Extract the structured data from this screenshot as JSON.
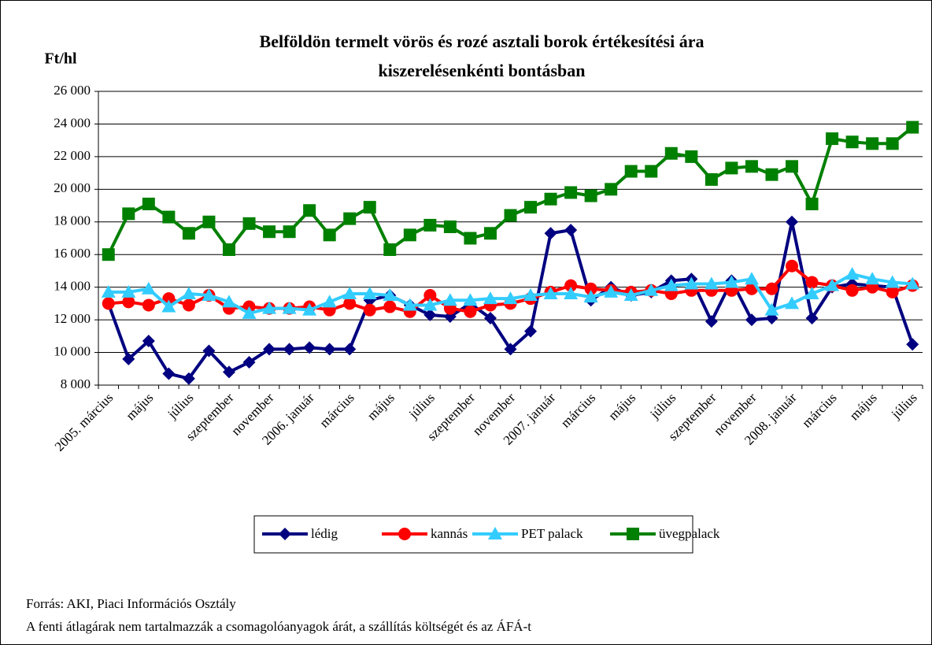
{
  "chart_data": {
    "type": "line",
    "title": [
      "Belföldön termelt vörös és rozé asztali borok értékesítési ára",
      "kiszerelésenkénti bontásban"
    ],
    "y_label": "Ft/hl",
    "categories": [
      "2005. március",
      null,
      "május",
      null,
      "július",
      null,
      "szeptember",
      null,
      "november",
      null,
      "2006. január",
      null,
      "március",
      null,
      "május",
      null,
      "július",
      null,
      "szeptember",
      null,
      "november",
      null,
      "2007. január",
      null,
      "március",
      null,
      "május",
      null,
      "július",
      null,
      "szeptember",
      null,
      "november",
      null,
      "2008. január",
      null,
      "március",
      null,
      "május",
      null,
      "július"
    ],
    "series": [
      {
        "name": "lédig",
        "color": "#000080",
        "marker": "diamond",
        "values": [
          13000,
          9600,
          10700,
          8700,
          8400,
          10100,
          8800,
          9400,
          10200,
          10200,
          10300,
          10200,
          10200,
          13200,
          13500,
          12900,
          12300,
          12200,
          13000,
          12100,
          10200,
          11300,
          17300,
          17500,
          13200,
          14000,
          13500,
          13700,
          14400,
          14500,
          11900,
          14400,
          12000,
          12100,
          18000,
          12100,
          14000,
          14200,
          14100,
          14000,
          10500
        ]
      },
      {
        "name": "kannás",
        "color": "#ff0000",
        "marker": "circle",
        "values": [
          13000,
          13100,
          12900,
          13300,
          12900,
          13500,
          12700,
          12800,
          12700,
          12700,
          12800,
          12600,
          13000,
          12600,
          12800,
          12500,
          13500,
          12700,
          12500,
          12900,
          13000,
          13300,
          13700,
          14100,
          13900,
          13800,
          13700,
          13800,
          13600,
          13800,
          13800,
          13800,
          13900,
          13900,
          15300,
          14300,
          14100,
          13800,
          14000,
          13700,
          14100
        ]
      },
      {
        "name": "PET palack",
        "color": "#33ccff",
        "marker": "triangle",
        "values": [
          13700,
          13700,
          13900,
          12800,
          13600,
          13500,
          13100,
          12400,
          12700,
          12700,
          12600,
          13100,
          13600,
          13600,
          13500,
          12900,
          12900,
          13200,
          13200,
          13300,
          13300,
          13500,
          13600,
          13600,
          13400,
          13700,
          13500,
          13800,
          14100,
          14200,
          14200,
          14300,
          14500,
          12600,
          13000,
          13600,
          14100,
          14800,
          14500,
          14300,
          14200
        ]
      },
      {
        "name": "üvegpalack",
        "color": "#008000",
        "marker": "square",
        "values": [
          16000,
          18500,
          19100,
          18300,
          17300,
          18000,
          16300,
          17900,
          17400,
          17400,
          18700,
          17200,
          18200,
          18900,
          16300,
          17200,
          17800,
          17700,
          17000,
          17300,
          18400,
          18900,
          19400,
          19800,
          19600,
          20000,
          21100,
          21100,
          22200,
          22000,
          20600,
          21300,
          21400,
          20900,
          21400,
          19100,
          23100,
          22900,
          22800,
          22800,
          23800
        ]
      }
    ],
    "ylim": [
      8000,
      26000
    ],
    "yticks": [
      {
        "value": 8000,
        "label": "8 000"
      },
      {
        "value": 10000,
        "label": "10 000"
      },
      {
        "value": 12000,
        "label": "12 000"
      },
      {
        "value": 14000,
        "label": "14 000"
      },
      {
        "value": 16000,
        "label": "16 000"
      },
      {
        "value": 18000,
        "label": "18 000"
      },
      {
        "value": 20000,
        "label": "20 000"
      },
      {
        "value": 22000,
        "label": "22 000"
      },
      {
        "value": 24000,
        "label": "24 000"
      },
      {
        "value": 26000,
        "label": "26 000"
      }
    ],
    "grid": true,
    "legend": "bottom",
    "notes": [
      "Forrás: AKI, Piaci Információs Osztály",
      "A fenti átlagárak nem tartalmazzák a csomagolóanyagok árát, a szállítás költségét és az ÁFÁ-t"
    ]
  }
}
